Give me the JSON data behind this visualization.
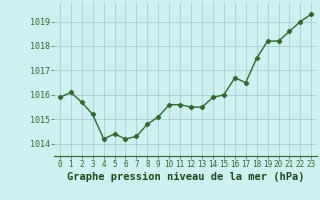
{
  "x": [
    0,
    1,
    2,
    3,
    4,
    5,
    6,
    7,
    8,
    9,
    10,
    11,
    12,
    13,
    14,
    15,
    16,
    17,
    18,
    19,
    20,
    21,
    22,
    23
  ],
  "y": [
    1015.9,
    1016.1,
    1015.7,
    1015.2,
    1014.2,
    1014.4,
    1014.2,
    1014.3,
    1014.8,
    1015.1,
    1015.6,
    1015.6,
    1015.5,
    1015.5,
    1015.9,
    1016.0,
    1016.7,
    1016.5,
    1017.5,
    1018.2,
    1018.2,
    1018.6,
    1019.0,
    1019.3
  ],
  "line_color": "#2d6a2d",
  "marker": "D",
  "marker_size": 2.2,
  "line_width": 1.0,
  "bg_color": "#cff0f0",
  "grid_color": "#a8d0d0",
  "xlabel": "Graphe pression niveau de la mer (hPa)",
  "xlabel_fontsize": 7.5,
  "xlabel_color": "#1a4a1a",
  "xlabel_bold": true,
  "ytick_labels": [
    1014,
    1015,
    1016,
    1017,
    1018,
    1019
  ],
  "ylim": [
    1013.5,
    1019.8
  ],
  "xlim": [
    -0.5,
    23.5
  ],
  "xtick_fontsize": 5.5,
  "ytick_fontsize": 6.0,
  "tick_color": "#2d6a2d"
}
